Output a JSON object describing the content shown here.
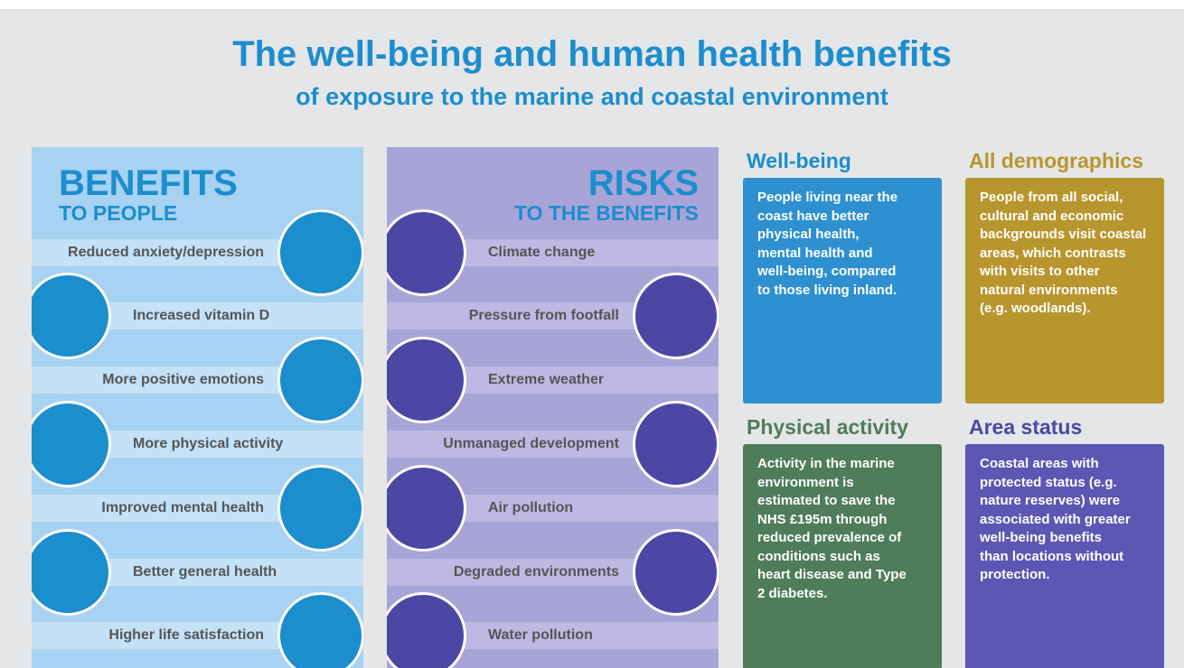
{
  "header": {
    "title": "The well-being and human health benefits",
    "subtitle": "of exposure to the marine and coastal environment"
  },
  "benefits": {
    "heading": "BENEFITS",
    "subheading": "TO PEOPLE",
    "items": [
      "Reduced anxiety/depression",
      "Increased vitamin D",
      "More positive emotions",
      "More physical activity",
      "Improved mental health",
      "Better general health",
      "Higher life satisfaction"
    ]
  },
  "risks": {
    "heading": "RISKS",
    "subheading": "TO THE BENEFITS",
    "items": [
      "Climate change",
      "Pressure from footfall",
      "Extreme weather",
      "Unmanaged development",
      "Air pollution",
      "Degraded environments",
      "Water pollution"
    ]
  },
  "boxes": [
    {
      "heading": "Well-being",
      "lines": [
        "People living near the",
        "coast have better",
        "physical health,",
        "mental health and",
        "well-being, compared",
        "to those living inland."
      ]
    },
    {
      "heading": "All demographics",
      "lines": [
        "People from all social,",
        "cultural and economic",
        "backgrounds visit coastal",
        "areas, which contrasts",
        "with visits to other",
        "natural environments",
        "(e.g. woodlands)."
      ]
    },
    {
      "heading": "Physical activity",
      "lines": [
        "Activity in the marine",
        "environment is",
        "estimated to save the",
        "NHS £195m through",
        "reduced prevalence of",
        "conditions such as",
        "heart disease and Type",
        "2 diabetes."
      ]
    },
    {
      "heading": "Area status",
      "lines": [
        "Coastal areas with",
        "protected status (e.g.",
        "nature reserves) were",
        "associated with greater",
        "well-being benefits",
        "than locations without",
        "protection."
      ]
    }
  ]
}
